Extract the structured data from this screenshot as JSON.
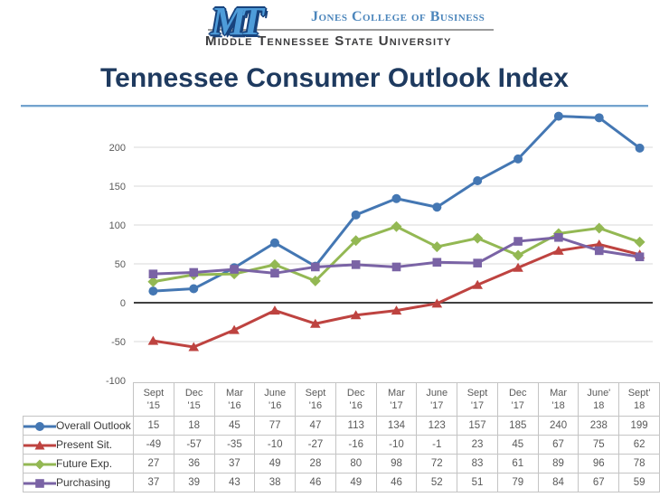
{
  "header": {
    "logo_text": "MT",
    "college_label": "Jones College of Business",
    "university_label": "Middle Tennessee State University"
  },
  "title": "Tennessee Consumer Outlook Index",
  "colors": {
    "title": "#1e3a5f",
    "college_text": "#4c86bc",
    "university_text": "#3c3c3e",
    "title_rule": "#73a3ce",
    "grid_line": "#d9d9d9",
    "zero_line": "#404040",
    "axis_text": "#595959",
    "table_border": "#c4c4c4",
    "table_text": "#595959"
  },
  "chart_data": {
    "type": "line",
    "title": "Tennessee Consumer Outlook Index",
    "categories": [
      "Sept '15",
      "Dec '15",
      "Mar '16",
      "June '16",
      "Sept '16",
      "Dec '16",
      "Mar '17",
      "June '17",
      "Sept '17",
      "Dec '17",
      "Mar '18",
      "June' 18",
      "Sept' 18"
    ],
    "category_lines": [
      [
        "Sept",
        "'15"
      ],
      [
        "Dec",
        "'15"
      ],
      [
        "Mar",
        "'16"
      ],
      [
        "June",
        "'16"
      ],
      [
        "Sept",
        "'16"
      ],
      [
        "Dec",
        "'16"
      ],
      [
        "Mar",
        "'17"
      ],
      [
        "June",
        "'17"
      ],
      [
        "Sept",
        "'17"
      ],
      [
        "Dec",
        "'17"
      ],
      [
        "Mar",
        "'18"
      ],
      [
        "June'",
        "18"
      ],
      [
        "Sept'",
        "18"
      ]
    ],
    "series": [
      {
        "name": "Overall Outlook",
        "marker": "circle",
        "color": "#4477b3",
        "values": [
          15,
          18,
          45,
          77,
          47,
          113,
          134,
          123,
          157,
          185,
          240,
          238,
          199
        ]
      },
      {
        "name": "Present Sit.",
        "marker": "triangle",
        "color": "#be4340",
        "values": [
          -49,
          -57,
          -35,
          -10,
          -27,
          -16,
          -10,
          -1,
          23,
          45,
          67,
          75,
          62
        ]
      },
      {
        "name": "Future Exp.",
        "marker": "diamond",
        "color": "#93b853",
        "values": [
          27,
          36,
          37,
          49,
          28,
          80,
          98,
          72,
          83,
          61,
          89,
          96,
          78
        ]
      },
      {
        "name": "Purchasing",
        "marker": "square",
        "color": "#7a63a5",
        "values": [
          37,
          39,
          43,
          38,
          46,
          49,
          46,
          52,
          51,
          79,
          84,
          67,
          59
        ]
      }
    ],
    "y_ticks": [
      200,
      150,
      100,
      50,
      0,
      -50,
      -100
    ],
    "ylim": [
      -100,
      250
    ],
    "xlabel": "",
    "ylabel": "",
    "grid": true,
    "zero_line": true,
    "legend_position": "table-left"
  }
}
